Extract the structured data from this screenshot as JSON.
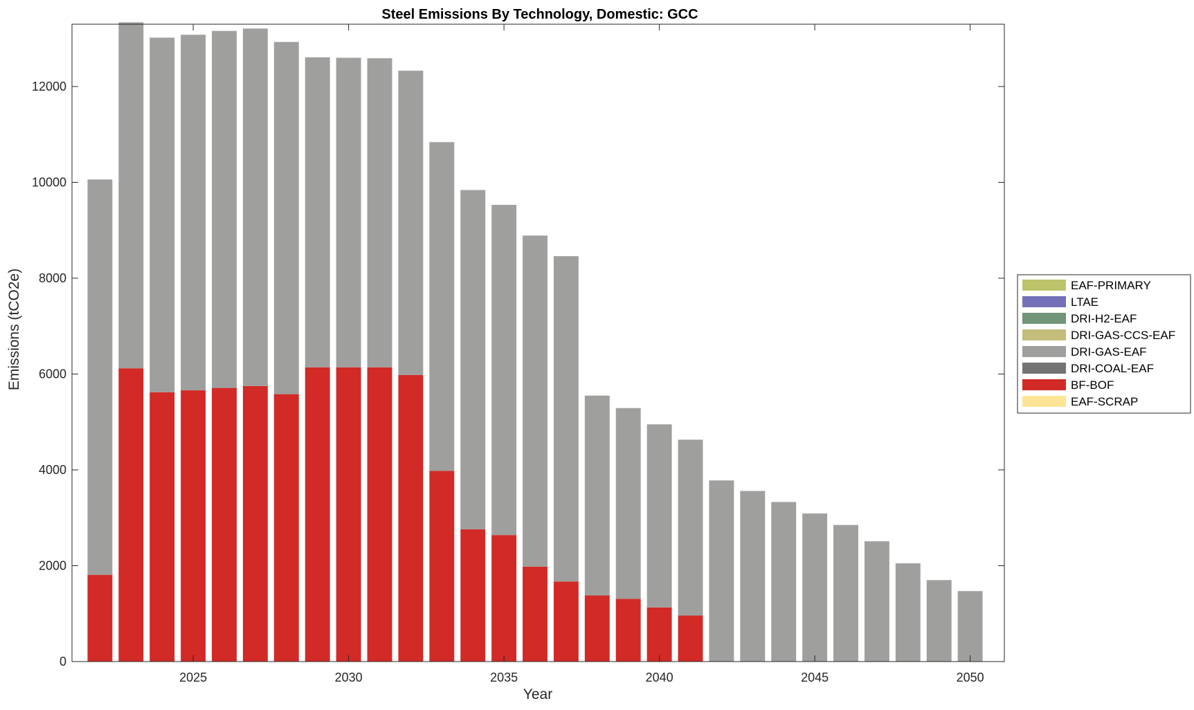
{
  "chart_data": {
    "type": "bar",
    "stacked": true,
    "title": "Steel Emissions By Technology, Domestic: GCC",
    "xlabel": "Year",
    "ylabel": "Emissions (tCO2e)",
    "x": [
      2022,
      2023,
      2024,
      2025,
      2026,
      2027,
      2028,
      2029,
      2030,
      2031,
      2032,
      2033,
      2034,
      2035,
      2036,
      2037,
      2038,
      2039,
      2040,
      2041,
      2042,
      2043,
      2044,
      2045,
      2046,
      2047,
      2048,
      2049,
      2050
    ],
    "xlim": [
      2021.1,
      2051.1
    ],
    "ylim": [
      0,
      13300
    ],
    "x_ticks": [
      2025,
      2030,
      2035,
      2040,
      2045,
      2050
    ],
    "y_ticks": [
      0,
      2000,
      4000,
      6000,
      8000,
      10000,
      12000
    ],
    "grid": false,
    "legend_position": "outside-right",
    "series": [
      {
        "name": "EAF-PRIMARY",
        "color": "#bdc46a",
        "values": [
          0,
          0,
          0,
          0,
          0,
          0,
          0,
          0,
          0,
          0,
          0,
          0,
          0,
          0,
          0,
          0,
          0,
          0,
          0,
          0,
          0,
          0,
          0,
          0,
          0,
          0,
          0,
          0,
          0
        ]
      },
      {
        "name": "LTAE",
        "color": "#7570b8",
        "values": [
          0,
          0,
          0,
          0,
          0,
          0,
          0,
          0,
          0,
          0,
          0,
          0,
          0,
          0,
          0,
          0,
          0,
          0,
          0,
          0,
          0,
          0,
          0,
          0,
          0,
          0,
          0,
          0,
          0
        ]
      },
      {
        "name": "DRI-H2-EAF",
        "color": "#73957a",
        "values": [
          0,
          0,
          0,
          0,
          0,
          0,
          0,
          0,
          0,
          0,
          0,
          0,
          0,
          0,
          0,
          0,
          0,
          0,
          0,
          0,
          0,
          0,
          0,
          0,
          0,
          0,
          0,
          0,
          0
        ]
      },
      {
        "name": "DRI-GAS-CCS-EAF",
        "color": "#c5bd7c",
        "values": [
          0,
          0,
          0,
          0,
          0,
          0,
          0,
          0,
          0,
          0,
          0,
          0,
          0,
          0,
          0,
          0,
          0,
          0,
          0,
          0,
          0,
          0,
          0,
          0,
          0,
          0,
          0,
          0,
          0
        ]
      },
      {
        "name": "DRI-GAS-EAF",
        "color": "#9f9f9e",
        "values": [
          8250,
          7220,
          7400,
          7420,
          7450,
          7460,
          7350,
          6470,
          6460,
          6450,
          6350,
          6860,
          7080,
          6890,
          6910,
          6790,
          4170,
          3980,
          3820,
          3670,
          3780,
          3560,
          3330,
          3090,
          2850,
          2510,
          2050,
          1700,
          1470
        ]
      },
      {
        "name": "DRI-COAL-EAF",
        "color": "#737373",
        "values": [
          0,
          0,
          0,
          0,
          0,
          0,
          0,
          0,
          0,
          0,
          0,
          0,
          0,
          0,
          0,
          0,
          0,
          0,
          0,
          0,
          0,
          0,
          0,
          0,
          0,
          0,
          0,
          0,
          0
        ]
      },
      {
        "name": "BF-BOF",
        "color": "#d22a26",
        "values": [
          1810,
          6120,
          5620,
          5660,
          5710,
          5750,
          5580,
          6140,
          6140,
          6140,
          5980,
          3980,
          2760,
          2640,
          1980,
          1670,
          1380,
          1310,
          1130,
          960,
          0,
          0,
          0,
          0,
          0,
          0,
          0,
          0,
          0
        ]
      },
      {
        "name": "EAF-SCRAP",
        "color": "#fde595",
        "values": [
          0,
          0,
          0,
          0,
          0,
          0,
          0,
          0,
          0,
          0,
          0,
          0,
          0,
          0,
          0,
          0,
          0,
          0,
          0,
          0,
          0,
          0,
          0,
          0,
          0,
          0,
          0,
          0,
          0
        ]
      }
    ],
    "legend_order": [
      "EAF-PRIMARY",
      "LTAE",
      "DRI-H2-EAF",
      "DRI-GAS-CCS-EAF",
      "DRI-GAS-EAF",
      "DRI-COAL-EAF",
      "BF-BOF",
      "EAF-SCRAP"
    ]
  }
}
